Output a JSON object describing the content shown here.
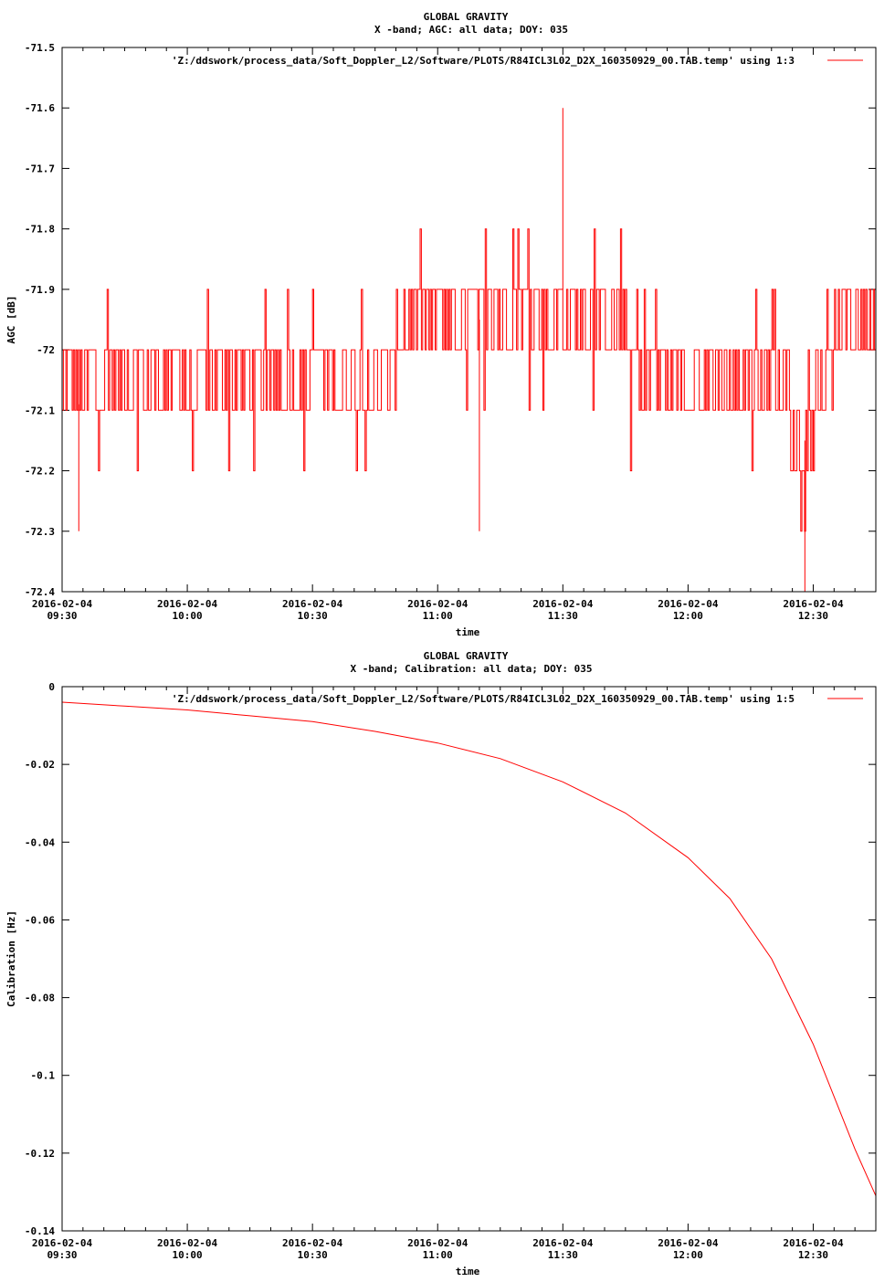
{
  "chart_data": [
    {
      "type": "line",
      "title": "GLOBAL GRAVITY",
      "subtitle": "X -band; AGC: all data; DOY: 035",
      "xlabel": "time",
      "ylabel": "AGC [dB]",
      "legend": "'Z:/ddswork/process_data/Soft_Doppler_L2/Software/PLOTS/R84ICL3L02_D2X_160350929_00.TAB.temp' using 1:3",
      "legend_position": "top-right",
      "line_color": "#ff0000",
      "xlim": [
        "2016-02-04 09:30",
        "2016-02-04 12:45"
      ],
      "ylim": [
        -72.4,
        -71.5
      ],
      "x_ticks": [
        [
          "2016-02-04",
          "09:30"
        ],
        [
          "2016-02-04",
          "10:00"
        ],
        [
          "2016-02-04",
          "10:30"
        ],
        [
          "2016-02-04",
          "11:00"
        ],
        [
          "2016-02-04",
          "11:30"
        ],
        [
          "2016-02-04",
          "12:00"
        ],
        [
          "2016-02-04",
          "12:30"
        ]
      ],
      "y_ticks": [
        "-71.5",
        "-71.6",
        "-71.7",
        "-71.8",
        "-71.9",
        "-72",
        "-72.1",
        "-72.2",
        "-72.3",
        "-72.4"
      ],
      "series": [
        {
          "x": [
            "09:30",
            "09:50",
            "10:10",
            "10:30",
            "10:50",
            "11:10",
            "11:20",
            "11:30",
            "11:40",
            "11:50",
            "12:10",
            "12:20",
            "12:28",
            "12:35",
            "12:45"
          ],
          "y": [
            -72.1,
            -72.05,
            -72.1,
            -72.05,
            -72.0,
            -71.95,
            -71.95,
            -71.9,
            -71.95,
            -72.05,
            -72.05,
            -72.05,
            -72.15,
            -72.0,
            -71.95
          ]
        }
      ],
      "annotations": [
        {
          "x": "11:30",
          "y": -71.6
        },
        {
          "x": "12:28",
          "y": -72.4
        },
        {
          "x": "09:34",
          "y": -72.3
        },
        {
          "x": "11:10",
          "y": -72.3
        }
      ]
    },
    {
      "type": "line",
      "title": "GLOBAL GRAVITY",
      "subtitle": "X -band; Calibration: all data; DOY: 035",
      "xlabel": "time",
      "ylabel": "Calibration [Hz]",
      "legend": "'Z:/ddswork/process_data/Soft_Doppler_L2/Software/PLOTS/R84ICL3L02_D2X_160350929_00.TAB.temp' using 1:5",
      "legend_position": "top-right",
      "line_color": "#ff0000",
      "xlim": [
        "2016-02-04 09:30",
        "2016-02-04 12:45"
      ],
      "ylim": [
        -0.14,
        0
      ],
      "x_ticks": [
        [
          "2016-02-04",
          "09:30"
        ],
        [
          "2016-02-04",
          "10:00"
        ],
        [
          "2016-02-04",
          "10:30"
        ],
        [
          "2016-02-04",
          "11:00"
        ],
        [
          "2016-02-04",
          "11:30"
        ],
        [
          "2016-02-04",
          "12:00"
        ],
        [
          "2016-02-04",
          "12:30"
        ]
      ],
      "y_ticks": [
        "0",
        "-0.02",
        "-0.04",
        "-0.06",
        "-0.08",
        "-0.1",
        "-0.12",
        "-0.14"
      ],
      "series": [
        {
          "x": [
            "09:30",
            "09:45",
            "10:00",
            "10:15",
            "10:30",
            "10:45",
            "11:00",
            "11:15",
            "11:30",
            "11:45",
            "12:00",
            "12:10",
            "12:20",
            "12:30",
            "12:40",
            "12:45"
          ],
          "y": [
            -0.004,
            -0.005,
            -0.006,
            -0.0075,
            -0.009,
            -0.0115,
            -0.0145,
            -0.0185,
            -0.0245,
            -0.0325,
            -0.044,
            -0.0545,
            -0.07,
            -0.092,
            -0.119,
            -0.131
          ]
        }
      ]
    }
  ]
}
